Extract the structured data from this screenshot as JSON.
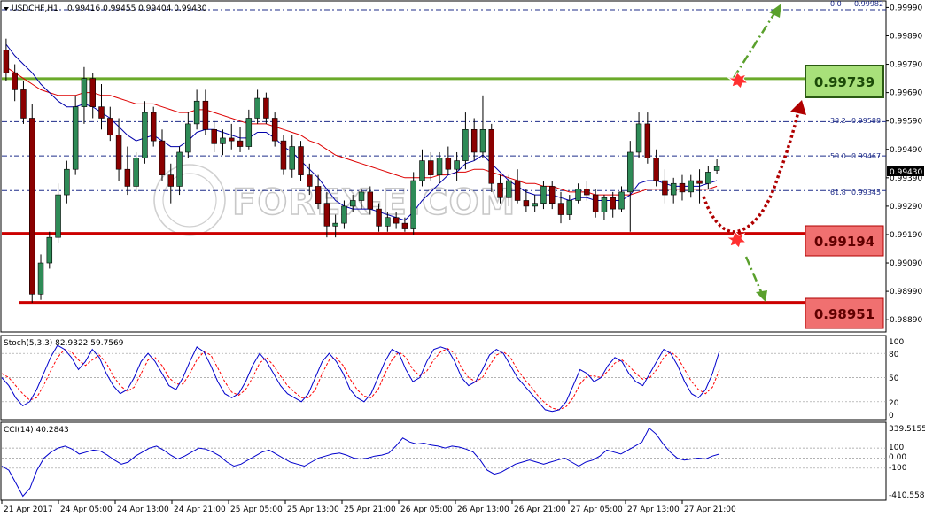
{
  "header": {
    "symbol": "USDCHF,H1",
    "ohlc": "0.99416 0.99455 0.99404 0.99430"
  },
  "watermark": "FOREX-E.COM",
  "colors": {
    "bull": "#2e8b57",
    "bear": "#8b0000",
    "support": "#cc0000",
    "resistance": "#6aaa2a",
    "fib": "#1f2d8a",
    "ma_fast": "#0000aa",
    "ma_slow": "#dd0000",
    "stoch_main": "#0000cc",
    "stoch_signal": "#ff0000",
    "cci": "#0000cc",
    "bg": "#ffffff"
  },
  "levels": {
    "resistance": "0.99739",
    "support_1": "0.99194",
    "support_2": "0.98951"
  },
  "fib_labels": [
    {
      "label": "0.0",
      "value": "0.99982"
    },
    {
      "label": "38.2",
      "value": "0.99588"
    },
    {
      "label": "50.0",
      "value": "0.99467"
    },
    {
      "label": "61.8",
      "value": "0.99345"
    }
  ],
  "current_price": "0.99430",
  "price_axis_ticks": [
    "0.99990",
    "0.99890",
    "0.99790",
    "0.99690",
    "0.99590",
    "0.99490",
    "0.99390",
    "0.99290",
    "0.99190",
    "0.99090",
    "0.98990",
    "0.98890"
  ],
  "time_axis_ticks": [
    "21 Apr 2017",
    "24 Apr 05:00",
    "24 Apr 13:00",
    "24 Apr 21:00",
    "25 Apr 05:00",
    "25 Apr 13:00",
    "25 Apr 21:00",
    "26 Apr 05:00",
    "26 Apr 13:00",
    "26 Apr 21:00",
    "27 Apr 05:00",
    "27 Apr 13:00",
    "27 Apr 21:00"
  ],
  "stoch": {
    "label": "Stoch(5,3,3) 82.9322 59.7569",
    "axis_ticks": [
      "100",
      "80",
      "50",
      "20",
      "0"
    ]
  },
  "cci": {
    "label": "CCI(14) 40.2843",
    "axis_ticks": [
      "339.5155",
      "100",
      "0.00",
      "-100",
      "-410.5585"
    ]
  },
  "chart_data": {
    "type": "candlestick",
    "price_range": [
      0.9885,
      1.0001
    ],
    "candles": [
      [
        0.9984,
        0.9988,
        0.9973,
        0.9976
      ],
      [
        0.9976,
        0.9979,
        0.9966,
        0.997
      ],
      [
        0.997,
        0.9973,
        0.9958,
        0.996
      ],
      [
        0.996,
        0.9965,
        0.9895,
        0.9898
      ],
      [
        0.9898,
        0.9912,
        0.9896,
        0.9909
      ],
      [
        0.9909,
        0.992,
        0.9907,
        0.9918
      ],
      [
        0.9918,
        0.9937,
        0.9916,
        0.9933
      ],
      [
        0.9933,
        0.9945,
        0.993,
        0.9942
      ],
      [
        0.9942,
        0.9968,
        0.994,
        0.9964
      ],
      [
        0.9964,
        0.9978,
        0.9958,
        0.9974
      ],
      [
        0.9974,
        0.9976,
        0.996,
        0.9964
      ],
      [
        0.9964,
        0.9972,
        0.9956,
        0.996
      ],
      [
        0.996,
        0.9964,
        0.9952,
        0.9954
      ],
      [
        0.9954,
        0.996,
        0.9938,
        0.9942
      ],
      [
        0.9942,
        0.995,
        0.9933,
        0.9936
      ],
      [
        0.9936,
        0.9948,
        0.9934,
        0.9946
      ],
      [
        0.9946,
        0.9966,
        0.9944,
        0.9962
      ],
      [
        0.9962,
        0.9964,
        0.995,
        0.9952
      ],
      [
        0.9952,
        0.9956,
        0.9938,
        0.994
      ],
      [
        0.994,
        0.9944,
        0.993,
        0.9936
      ],
      [
        0.9936,
        0.995,
        0.9933,
        0.9948
      ],
      [
        0.9948,
        0.9962,
        0.9946,
        0.9958
      ],
      [
        0.9958,
        0.997,
        0.9956,
        0.9966
      ],
      [
        0.9966,
        0.997,
        0.9954,
        0.9956
      ],
      [
        0.9956,
        0.9959,
        0.9948,
        0.9951
      ],
      [
        0.9951,
        0.9956,
        0.9947,
        0.9953
      ],
      [
        0.9953,
        0.9958,
        0.9949,
        0.9952
      ],
      [
        0.9952,
        0.9957,
        0.9948,
        0.995
      ],
      [
        0.995,
        0.9963,
        0.9949,
        0.996
      ],
      [
        0.996,
        0.997,
        0.9958,
        0.9967
      ],
      [
        0.9967,
        0.9969,
        0.9958,
        0.996
      ],
      [
        0.996,
        0.9962,
        0.995,
        0.9952
      ],
      [
        0.9952,
        0.9954,
        0.994,
        0.9942
      ],
      [
        0.9942,
        0.9954,
        0.9939,
        0.995
      ],
      [
        0.995,
        0.9952,
        0.9938,
        0.994
      ],
      [
        0.994,
        0.9944,
        0.9933,
        0.9936
      ],
      [
        0.9936,
        0.994,
        0.9928,
        0.993
      ],
      [
        0.993,
        0.9934,
        0.9918,
        0.9922
      ],
      [
        0.9922,
        0.9926,
        0.9918,
        0.9923
      ],
      [
        0.9923,
        0.9931,
        0.9921,
        0.9929
      ],
      [
        0.9929,
        0.9933,
        0.9927,
        0.9931
      ],
      [
        0.9931,
        0.9935,
        0.9928,
        0.9934
      ],
      [
        0.9934,
        0.9936,
        0.9926,
        0.9928
      ],
      [
        0.9928,
        0.993,
        0.992,
        0.9922
      ],
      [
        0.9922,
        0.9927,
        0.992,
        0.9925
      ],
      [
        0.9925,
        0.9927,
        0.9921,
        0.9923
      ],
      [
        0.9923,
        0.9925,
        0.992,
        0.9921
      ],
      [
        0.9921,
        0.9941,
        0.9919,
        0.9938
      ],
      [
        0.9938,
        0.9949,
        0.9936,
        0.9945
      ],
      [
        0.9945,
        0.9948,
        0.9938,
        0.994
      ],
      [
        0.994,
        0.9948,
        0.9937,
        0.9946
      ],
      [
        0.9946,
        0.995,
        0.994,
        0.9942
      ],
      [
        0.9942,
        0.9948,
        0.9938,
        0.9945
      ],
      [
        0.9945,
        0.9962,
        0.9942,
        0.9956
      ],
      [
        0.9956,
        0.996,
        0.9945,
        0.9948
      ],
      [
        0.9948,
        0.9968,
        0.9946,
        0.9956
      ],
      [
        0.9956,
        0.9958,
        0.9934,
        0.9937
      ],
      [
        0.9937,
        0.994,
        0.993,
        0.9932
      ],
      [
        0.9932,
        0.994,
        0.9929,
        0.9938
      ],
      [
        0.9938,
        0.9942,
        0.993,
        0.9931
      ],
      [
        0.9931,
        0.9935,
        0.9927,
        0.9929
      ],
      [
        0.9929,
        0.9933,
        0.9927,
        0.993
      ],
      [
        0.993,
        0.9938,
        0.9928,
        0.9936
      ],
      [
        0.9936,
        0.9938,
        0.9928,
        0.993
      ],
      [
        0.993,
        0.9934,
        0.9923,
        0.9926
      ],
      [
        0.9926,
        0.9933,
        0.9924,
        0.9931
      ],
      [
        0.9931,
        0.9937,
        0.993,
        0.9935
      ],
      [
        0.9935,
        0.9938,
        0.9931,
        0.9933
      ],
      [
        0.9933,
        0.9935,
        0.9925,
        0.9927
      ],
      [
        0.9927,
        0.9933,
        0.9924,
        0.9932
      ],
      [
        0.9932,
        0.9934,
        0.9925,
        0.9928
      ],
      [
        0.9928,
        0.9936,
        0.9927,
        0.9934
      ],
      [
        0.9934,
        0.9952,
        0.992,
        0.9948
      ],
      [
        0.9948,
        0.9962,
        0.9946,
        0.9958
      ],
      [
        0.9958,
        0.9962,
        0.9944,
        0.9946
      ],
      [
        0.9946,
        0.9949,
        0.9936,
        0.9938
      ],
      [
        0.9938,
        0.9942,
        0.993,
        0.9933
      ],
      [
        0.9933,
        0.9939,
        0.993,
        0.9937
      ],
      [
        0.9937,
        0.994,
        0.9931,
        0.9934
      ],
      [
        0.9934,
        0.994,
        0.9932,
        0.9938
      ],
      [
        0.9938,
        0.9942,
        0.993,
        0.9937
      ],
      [
        0.9937,
        0.9943,
        0.9935,
        0.9941
      ],
      [
        0.99416,
        0.99455,
        0.99404,
        0.9943
      ]
    ],
    "ma_fast": [
      0.9986,
      0.9982,
      0.9979,
      0.9976,
      0.9972,
      0.9969,
      0.9966,
      0.9964,
      0.9964,
      0.9965,
      0.9964,
      0.9962,
      0.996,
      0.9957,
      0.9954,
      0.9952,
      0.9953,
      0.9954,
      0.9952,
      0.995,
      0.995,
      0.9952,
      0.9955,
      0.9956,
      0.9956,
      0.9955,
      0.9954,
      0.9953,
      0.9953,
      0.9955,
      0.9955,
      0.9953,
      0.995,
      0.9948,
      0.9945,
      0.9942,
      0.9939,
      0.9935,
      0.9931,
      0.9929,
      0.9928,
      0.9928,
      0.9928,
      0.9927,
      0.9926,
      0.9925,
      0.9924,
      0.9927,
      0.9931,
      0.9934,
      0.9937,
      0.994,
      0.9941,
      0.9944,
      0.9945,
      0.9947,
      0.9944,
      0.9941,
      0.9938,
      0.9936,
      0.9934,
      0.9933,
      0.9933,
      0.9933,
      0.9932,
      0.9931,
      0.9932,
      0.9932,
      0.9931,
      0.9931,
      0.9931,
      0.9931,
      0.9933,
      0.9937,
      0.9938,
      0.9938,
      0.9937,
      0.9936,
      0.9936,
      0.9936,
      0.9936,
      0.9937,
      0.9938
    ],
    "ma_slow": [
      0.9978,
      0.9976,
      0.9974,
      0.9972,
      0.997,
      0.9969,
      0.9968,
      0.9968,
      0.9968,
      0.9969,
      0.9969,
      0.9968,
      0.9968,
      0.9967,
      0.9966,
      0.9965,
      0.9965,
      0.9965,
      0.9964,
      0.9963,
      0.9962,
      0.9962,
      0.9963,
      0.9963,
      0.9962,
      0.9961,
      0.996,
      0.9959,
      0.9958,
      0.9958,
      0.9958,
      0.9957,
      0.9956,
      0.9955,
      0.9954,
      0.9952,
      0.9951,
      0.9949,
      0.9947,
      0.9946,
      0.9945,
      0.9944,
      0.9943,
      0.9942,
      0.9941,
      0.994,
      0.9939,
      0.9939,
      0.9939,
      0.9939,
      0.994,
      0.994,
      0.9941,
      0.9941,
      0.9942,
      0.9942,
      0.9941,
      0.994,
      0.9939,
      0.9938,
      0.9937,
      0.9937,
      0.9936,
      0.9936,
      0.9935,
      0.9934,
      0.9934,
      0.9934,
      0.9933,
      0.9933,
      0.9933,
      0.9933,
      0.9933,
      0.9934,
      0.9935,
      0.9935,
      0.9935,
      0.9935,
      0.9935,
      0.9935,
      0.9935,
      0.9935,
      0.9936
    ],
    "stoch_main": [
      50,
      40,
      25,
      15,
      20,
      35,
      55,
      75,
      90,
      85,
      75,
      60,
      70,
      85,
      75,
      55,
      40,
      30,
      35,
      50,
      70,
      80,
      70,
      55,
      40,
      35,
      50,
      70,
      88,
      82,
      65,
      45,
      30,
      25,
      30,
      45,
      65,
      80,
      70,
      55,
      40,
      30,
      25,
      20,
      30,
      50,
      70,
      80,
      70,
      55,
      35,
      25,
      20,
      30,
      50,
      70,
      85,
      80,
      60,
      45,
      50,
      70,
      85,
      88,
      85,
      70,
      50,
      40,
      45,
      60,
      78,
      85,
      80,
      65,
      50,
      40,
      30,
      20,
      10,
      8,
      10,
      20,
      40,
      60,
      55,
      45,
      50,
      65,
      75,
      70,
      55,
      45,
      40,
      55,
      70,
      85,
      80,
      65,
      45,
      30,
      25,
      35,
      55,
      82.9322
    ],
    "stoch_signal": [
      55,
      50,
      40,
      30,
      22,
      25,
      40,
      58,
      75,
      85,
      82,
      72,
      65,
      72,
      78,
      68,
      52,
      40,
      33,
      38,
      55,
      72,
      75,
      65,
      50,
      42,
      42,
      55,
      72,
      82,
      78,
      62,
      45,
      32,
      28,
      35,
      50,
      68,
      75,
      65,
      52,
      40,
      32,
      25,
      25,
      35,
      55,
      72,
      75,
      65,
      48,
      35,
      27,
      25,
      35,
      55,
      72,
      82,
      75,
      60,
      52,
      58,
      72,
      82,
      86,
      80,
      62,
      50,
      45,
      50,
      65,
      78,
      82,
      75,
      60,
      48,
      38,
      27,
      18,
      12,
      10,
      14,
      25,
      42,
      52,
      52,
      50,
      58,
      68,
      72,
      65,
      55,
      48,
      50,
      60,
      75,
      82,
      75,
      60,
      45,
      35,
      30,
      38,
      59.7569
    ],
    "cci": [
      -80,
      -120,
      -250,
      -380,
      -300,
      -120,
      0,
      60,
      100,
      120,
      90,
      40,
      60,
      80,
      70,
      30,
      -20,
      -60,
      -40,
      20,
      60,
      100,
      120,
      80,
      30,
      -10,
      20,
      60,
      100,
      90,
      60,
      20,
      -40,
      -80,
      -60,
      -20,
      20,
      60,
      80,
      40,
      0,
      -40,
      -60,
      -80,
      -40,
      0,
      20,
      40,
      50,
      30,
      0,
      -10,
      0,
      20,
      30,
      50,
      120,
      200,
      160,
      140,
      150,
      130,
      120,
      100,
      120,
      110,
      90,
      60,
      -20,
      -120,
      -160,
      -140,
      -100,
      -60,
      -40,
      -20,
      -40,
      -60,
      -40,
      -20,
      0,
      -40,
      -80,
      -40,
      -20,
      20,
      80,
      60,
      40,
      80,
      120,
      160,
      300,
      240,
      140,
      60,
      0,
      -20,
      -10,
      0,
      -10,
      20,
      40.2843
    ],
    "fib_levels": [
      {
        "ratio": 0.0,
        "price": 0.99982
      },
      {
        "ratio": 0.382,
        "price": 0.99588
      },
      {
        "ratio": 0.5,
        "price": 0.99467
      },
      {
        "ratio": 0.618,
        "price": 0.99345
      }
    ],
    "horizontal_levels": [
      {
        "role": "resistance",
        "price": 0.99739
      },
      {
        "role": "support",
        "price": 0.99194
      },
      {
        "role": "support",
        "price": 0.98951
      }
    ],
    "stoch_ylim": [
      0,
      100
    ],
    "cci_ylim": [
      -410.5585,
      339.5155
    ]
  }
}
